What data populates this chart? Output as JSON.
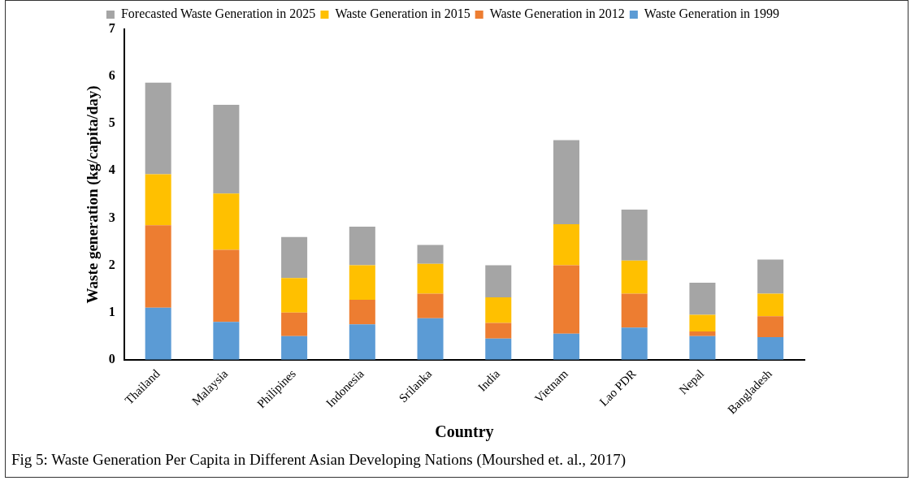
{
  "chart_data": {
    "type": "bar",
    "stacked": true,
    "xlabel": "Country",
    "ylabel": "Waste generation (kg/capita/day)",
    "categories": [
      "Thailand",
      "Malaysia",
      "Philipines",
      "Indonesia",
      "Srilanka",
      "India",
      "Vietnam",
      "Lao PDR",
      "Nepal",
      "Bangladesh"
    ],
    "series": [
      {
        "name": "Waste Generation in 1999",
        "color": "#5b9bd5",
        "values": [
          1.1,
          0.8,
          0.5,
          0.75,
          0.88,
          0.45,
          0.55,
          0.68,
          0.5,
          0.48
        ]
      },
      {
        "name": "Waste Generation in 2012",
        "color": "#ed7d31",
        "values": [
          1.75,
          1.53,
          0.5,
          0.52,
          0.52,
          0.33,
          1.45,
          0.72,
          0.1,
          0.44
        ]
      },
      {
        "name": "Waste Generation in 2015",
        "color": "#ffc000",
        "values": [
          1.08,
          1.19,
          0.73,
          0.73,
          0.63,
          0.54,
          0.87,
          0.7,
          0.35,
          0.48
        ]
      },
      {
        "name": "Forecasted Waste Generation in 2025",
        "color": "#a5a5a5",
        "values": [
          1.94,
          1.88,
          0.87,
          0.82,
          0.4,
          0.68,
          1.78,
          1.08,
          0.68,
          0.72
        ]
      }
    ],
    "ylim": [
      0,
      7
    ],
    "yticks": [
      0,
      1,
      2,
      3,
      4,
      5,
      6,
      7
    ],
    "grid": false,
    "legend": "top",
    "annotations": [
      "Fig 5: Waste Generation Per Capita in Different Asian Developing Nations (Mourshed et. al., 2017)"
    ]
  }
}
